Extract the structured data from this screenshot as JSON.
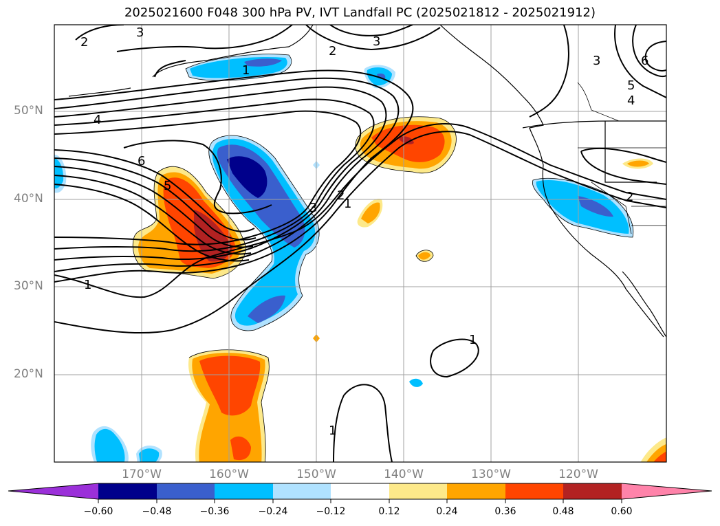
{
  "title": "2025021600 F048 300 hPa PV, IVT Landfall PC (2025021812 - 2025021912)",
  "map": {
    "lat_labels": [
      "50°N",
      "40°N",
      "30°N",
      "20°N"
    ],
    "lon_labels": [
      "170°W",
      "160°W",
      "150°W",
      "140°W",
      "130°W",
      "120°W"
    ],
    "contour_labels": [
      "1",
      "1",
      "1",
      "1",
      "2",
      "2",
      "2",
      "3",
      "3",
      "3",
      "3",
      "4",
      "4",
      "5",
      "5",
      "6",
      "6",
      "1",
      "2"
    ]
  },
  "colorbar": {
    "colors": [
      "#9b30d9",
      "#00008b",
      "#3a5fcd",
      "#00bfff",
      "#b0e2ff",
      "#ffffff",
      "#fde98a",
      "#ffa500",
      "#ff4500",
      "#b22222",
      "#ff83aa"
    ],
    "ticks": [
      "−0.60",
      "−0.48",
      "−0.36",
      "−0.24",
      "−0.12",
      "0.12",
      "0.24",
      "0.36",
      "0.48",
      "0.60"
    ]
  }
}
